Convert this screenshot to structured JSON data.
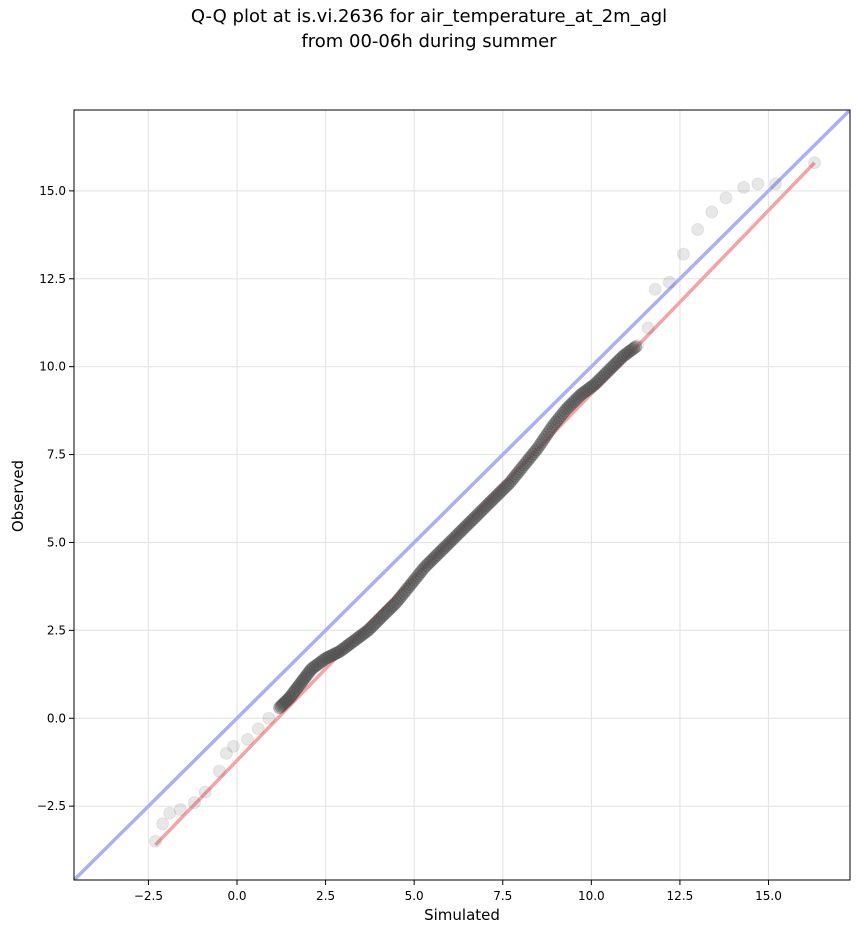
{
  "chart_data": {
    "type": "scatter",
    "title_line1": "Q-Q plot at is.vi.2636 for air_temperature_at_2m_agl",
    "title_line2": "from 00-06h during summer",
    "xlabel": "Simulated",
    "ylabel": "Observed",
    "xlim": [
      -4.6,
      17.3
    ],
    "ylim": [
      -4.6,
      17.3
    ],
    "xticks": [
      -2.5,
      0.0,
      2.5,
      5.0,
      7.5,
      10.0,
      12.5,
      15.0
    ],
    "yticks": [
      -2.5,
      0.0,
      2.5,
      5.0,
      7.5,
      10.0,
      12.5,
      15.0
    ],
    "xtick_labels": [
      "−2.5",
      "0.0",
      "2.5",
      "5.0",
      "7.5",
      "10.0",
      "12.5",
      "15.0"
    ],
    "ytick_labels": [
      "−2.5",
      "0.0",
      "2.5",
      "5.0",
      "7.5",
      "10.0",
      "12.5",
      "15.0"
    ],
    "grid": true,
    "identity_line": {
      "color": "#aab0f5",
      "from": [
        -4.6,
        -4.6
      ],
      "to": [
        17.3,
        17.3
      ]
    },
    "fit_line": {
      "color": "#f5a3a3",
      "from": [
        -2.3,
        -3.6
      ],
      "to": [
        16.3,
        15.8
      ]
    },
    "points": [
      [
        -2.3,
        -3.5
      ],
      [
        -2.1,
        -3.0
      ],
      [
        -1.9,
        -2.7
      ],
      [
        -1.6,
        -2.6
      ],
      [
        -1.2,
        -2.4
      ],
      [
        -0.9,
        -2.1
      ],
      [
        -0.5,
        -1.5
      ],
      [
        -0.3,
        -1.0
      ],
      [
        -0.1,
        -0.8
      ],
      [
        0.3,
        -0.6
      ],
      [
        0.6,
        -0.3
      ],
      [
        0.9,
        0.0
      ],
      [
        1.2,
        0.3
      ],
      [
        1.5,
        0.6
      ],
      [
        1.8,
        1.0
      ],
      [
        2.1,
        1.4
      ],
      [
        2.5,
        1.7
      ],
      [
        2.9,
        1.9
      ],
      [
        3.3,
        2.2
      ],
      [
        3.7,
        2.5
      ],
      [
        4.1,
        2.9
      ],
      [
        4.5,
        3.3
      ],
      [
        4.9,
        3.8
      ],
      [
        5.3,
        4.3
      ],
      [
        5.7,
        4.7
      ],
      [
        6.1,
        5.1
      ],
      [
        6.5,
        5.5
      ],
      [
        6.9,
        5.9
      ],
      [
        7.3,
        6.3
      ],
      [
        7.7,
        6.7
      ],
      [
        8.1,
        7.2
      ],
      [
        8.5,
        7.7
      ],
      [
        8.9,
        8.3
      ],
      [
        9.3,
        8.8
      ],
      [
        9.7,
        9.2
      ],
      [
        10.1,
        9.5
      ],
      [
        10.5,
        9.9
      ],
      [
        10.9,
        10.3
      ],
      [
        11.3,
        10.6
      ],
      [
        11.6,
        11.1
      ],
      [
        11.8,
        12.2
      ],
      [
        12.2,
        12.4
      ],
      [
        12.6,
        13.2
      ],
      [
        13.0,
        13.9
      ],
      [
        13.4,
        14.4
      ],
      [
        13.8,
        14.8
      ],
      [
        14.3,
        15.1
      ],
      [
        14.7,
        15.2
      ],
      [
        15.2,
        15.2
      ],
      [
        16.3,
        15.8
      ]
    ]
  }
}
